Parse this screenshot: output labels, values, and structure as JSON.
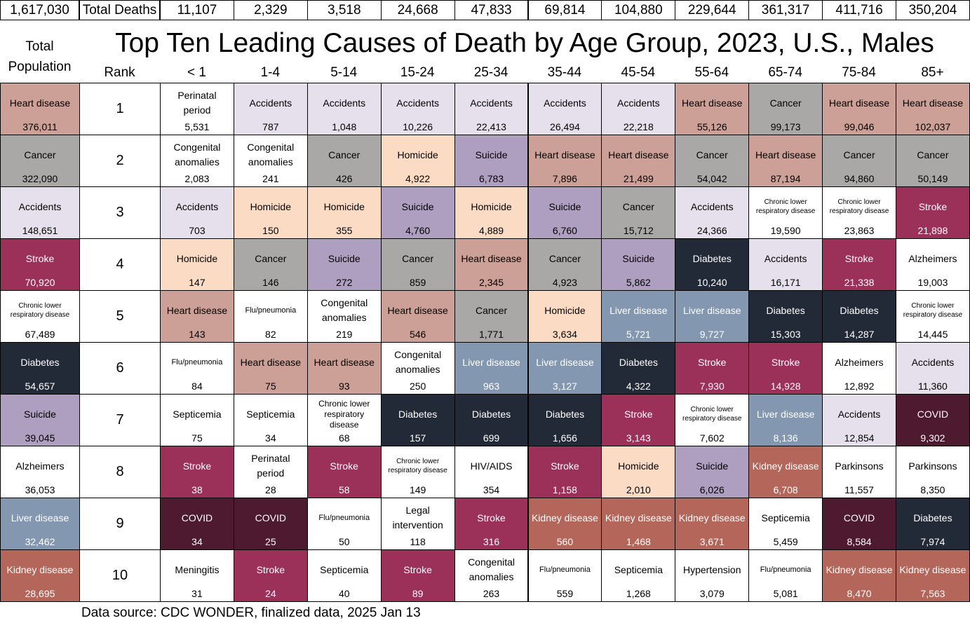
{
  "totals": {
    "overall": "1,617,030",
    "label": "Total Deaths",
    "by_age": [
      "11,107",
      "2,329",
      "3,518",
      "24,668",
      "47,833",
      "69,814",
      "104,880",
      "229,644",
      "361,317",
      "411,716",
      "350,204"
    ]
  },
  "title": "Top Ten Leading Causes of Death by Age Group, 2023, U.S., Males",
  "total_population_label_1": "Total",
  "total_population_label_2": "Population",
  "rank_label": "Rank",
  "age_groups": [
    "< 1",
    "1-4",
    "5-14",
    "15-24",
    "25-34",
    "35-44",
    "45-54",
    "55-64",
    "65-74",
    "75-84",
    "85+"
  ],
  "source": "Data source: CDC WONDER, finalized data, 2025 Jan 13",
  "colors": {
    "Heart disease": "#cca096",
    "Cancer": "#aaa7a7",
    "Accidents": "#e6e0ec",
    "Stroke": "#9b3159",
    "Chronic lower respiratory disease": "#ffffff",
    "Diabetes": "#232a37",
    "Suicide": "#ae9fc0",
    "Alzheimers": "#ffffff",
    "Liver disease": "#8497b0",
    "Kidney disease": "#b4665a",
    "Homicide": "#fcdbc4",
    "COVID": "#4d1a30",
    "Perinatal period": "#ffffff",
    "Congenital anomalies": "#ffffff",
    "Flu/pneumonia": "#ffffff",
    "Septicemia": "#ffffff",
    "HIV/AIDS": "#ffffff",
    "Legal intervention": "#ffffff",
    "Meningitis": "#ffffff",
    "Hypertension": "#ffffff",
    "Parkinsons": "#ffffff"
  },
  "chart_data": {
    "type": "table",
    "title": "Top Ten Leading Causes of Death by Age Group, 2023, U.S., Males",
    "columns": [
      "Total Population",
      "< 1",
      "1-4",
      "5-14",
      "15-24",
      "25-34",
      "35-44",
      "45-54",
      "55-64",
      "65-74",
      "75-84",
      "85+"
    ],
    "ranks": [
      "1",
      "2",
      "3",
      "4",
      "5",
      "6",
      "7",
      "8",
      "9",
      "10"
    ],
    "rows": [
      [
        {
          "cause": "Heart disease",
          "value": "376,011"
        },
        {
          "cause": "Perinatal period",
          "value": "5,531"
        },
        {
          "cause": "Accidents",
          "value": "787"
        },
        {
          "cause": "Accidents",
          "value": "1,048"
        },
        {
          "cause": "Accidents",
          "value": "10,226"
        },
        {
          "cause": "Accidents",
          "value": "22,413"
        },
        {
          "cause": "Accidents",
          "value": "26,494"
        },
        {
          "cause": "Accidents",
          "value": "22,218"
        },
        {
          "cause": "Heart disease",
          "value": "55,126"
        },
        {
          "cause": "Cancer",
          "value": "99,173"
        },
        {
          "cause": "Heart disease",
          "value": "99,046"
        },
        {
          "cause": "Heart disease",
          "value": "102,037"
        }
      ],
      [
        {
          "cause": "Cancer",
          "value": "322,090"
        },
        {
          "cause": "Congenital anomalies",
          "value": "2,083"
        },
        {
          "cause": "Congenital anomalies",
          "value": "241"
        },
        {
          "cause": "Cancer",
          "value": "426"
        },
        {
          "cause": "Homicide",
          "value": "4,922"
        },
        {
          "cause": "Suicide",
          "value": "6,783"
        },
        {
          "cause": "Heart disease",
          "value": "7,896"
        },
        {
          "cause": "Heart disease",
          "value": "21,499"
        },
        {
          "cause": "Cancer",
          "value": "54,042"
        },
        {
          "cause": "Heart disease",
          "value": "87,194"
        },
        {
          "cause": "Cancer",
          "value": "94,860"
        },
        {
          "cause": "Cancer",
          "value": "50,149"
        }
      ],
      [
        {
          "cause": "Accidents",
          "value": "148,651"
        },
        {
          "cause": "Accidents",
          "value": "703"
        },
        {
          "cause": "Homicide",
          "value": "150"
        },
        {
          "cause": "Homicide",
          "value": "355"
        },
        {
          "cause": "Suicide",
          "value": "4,760"
        },
        {
          "cause": "Homicide",
          "value": "4,889"
        },
        {
          "cause": "Suicide",
          "value": "6,760"
        },
        {
          "cause": "Cancer",
          "value": "15,712"
        },
        {
          "cause": "Accidents",
          "value": "24,366"
        },
        {
          "cause": "Chronic lower respiratory disease",
          "value": "19,590"
        },
        {
          "cause": "Chronic lower respiratory disease",
          "value": "23,863"
        },
        {
          "cause": "Stroke",
          "value": "21,898"
        }
      ],
      [
        {
          "cause": "Stroke",
          "value": "70,920"
        },
        {
          "cause": "Homicide",
          "value": "147"
        },
        {
          "cause": "Cancer",
          "value": "146"
        },
        {
          "cause": "Suicide",
          "value": "272"
        },
        {
          "cause": "Cancer",
          "value": "859"
        },
        {
          "cause": "Heart disease",
          "value": "2,345"
        },
        {
          "cause": "Cancer",
          "value": "4,923"
        },
        {
          "cause": "Suicide",
          "value": "5,862"
        },
        {
          "cause": "Diabetes",
          "value": "10,240"
        },
        {
          "cause": "Accidents",
          "value": "16,171"
        },
        {
          "cause": "Stroke",
          "value": "21,338"
        },
        {
          "cause": "Alzheimers",
          "value": "19,003"
        }
      ],
      [
        {
          "cause": "Chronic lower respiratory disease",
          "value": "67,489"
        },
        {
          "cause": "Heart disease",
          "value": "143"
        },
        {
          "cause": "Flu/pneumonia",
          "value": "82"
        },
        {
          "cause": "Congenital anomalies",
          "value": "219"
        },
        {
          "cause": "Heart disease",
          "value": "546"
        },
        {
          "cause": "Cancer",
          "value": "1,771"
        },
        {
          "cause": "Homicide",
          "value": "3,634"
        },
        {
          "cause": "Liver disease",
          "value": "5,721"
        },
        {
          "cause": "Liver disease",
          "value": "9,727"
        },
        {
          "cause": "Diabetes",
          "value": "15,303"
        },
        {
          "cause": "Diabetes",
          "value": "14,287"
        },
        {
          "cause": "Chronic lower respiratory disease",
          "value": "14,445"
        }
      ],
      [
        {
          "cause": "Diabetes",
          "value": "54,657"
        },
        {
          "cause": "Flu/pneumonia",
          "value": "84"
        },
        {
          "cause": "Heart disease",
          "value": "75"
        },
        {
          "cause": "Heart disease",
          "value": "93"
        },
        {
          "cause": "Congenital anomalies",
          "value": "250"
        },
        {
          "cause": "Liver disease",
          "value": "963"
        },
        {
          "cause": "Liver disease",
          "value": "3,127"
        },
        {
          "cause": "Diabetes",
          "value": "4,322"
        },
        {
          "cause": "Stroke",
          "value": "7,930"
        },
        {
          "cause": "Stroke",
          "value": "14,928"
        },
        {
          "cause": "Alzheimers",
          "value": "12,892"
        },
        {
          "cause": "Accidents",
          "value": "11,360"
        }
      ],
      [
        {
          "cause": "Suicide",
          "value": "39,045"
        },
        {
          "cause": "Septicemia",
          "value": "75"
        },
        {
          "cause": "Septicemia",
          "value": "34"
        },
        {
          "cause": "Chronic lower respiratory disease",
          "value": "68"
        },
        {
          "cause": "Diabetes",
          "value": "157"
        },
        {
          "cause": "Diabetes",
          "value": "699"
        },
        {
          "cause": "Diabetes",
          "value": "1,656"
        },
        {
          "cause": "Stroke",
          "value": "3,143"
        },
        {
          "cause": "Chronic lower respiratory disease",
          "value": "7,602"
        },
        {
          "cause": "Liver disease",
          "value": "8,136"
        },
        {
          "cause": "Accidents",
          "value": "12,854"
        },
        {
          "cause": "COVID",
          "value": "9,302"
        }
      ],
      [
        {
          "cause": "Alzheimers",
          "value": "36,053"
        },
        {
          "cause": "Stroke",
          "value": "38"
        },
        {
          "cause": "Perinatal period",
          "value": "28"
        },
        {
          "cause": "Stroke",
          "value": "58"
        },
        {
          "cause": "Chronic lower respiratory disease",
          "value": "149"
        },
        {
          "cause": "HIV/AIDS",
          "value": "354"
        },
        {
          "cause": "Stroke",
          "value": "1,158"
        },
        {
          "cause": "Homicide",
          "value": "2,010"
        },
        {
          "cause": "Suicide",
          "value": "6,026"
        },
        {
          "cause": "Kidney disease",
          "value": "6,708"
        },
        {
          "cause": "Parkinsons",
          "value": "11,557"
        },
        {
          "cause": "Parkinsons",
          "value": "8,350"
        }
      ],
      [
        {
          "cause": "Liver disease",
          "value": "32,462"
        },
        {
          "cause": "COVID",
          "value": "34"
        },
        {
          "cause": "COVID",
          "value": "25"
        },
        {
          "cause": "Flu/pneumonia",
          "value": "50"
        },
        {
          "cause": "Legal intervention",
          "value": "118"
        },
        {
          "cause": "Stroke",
          "value": "316"
        },
        {
          "cause": "Kidney disease",
          "value": "560"
        },
        {
          "cause": "Kidney disease",
          "value": "1,468"
        },
        {
          "cause": "Kidney disease",
          "value": "3,671"
        },
        {
          "cause": "Septicemia",
          "value": "5,459"
        },
        {
          "cause": "COVID",
          "value": "8,584"
        },
        {
          "cause": "Diabetes",
          "value": "7,974"
        }
      ],
      [
        {
          "cause": "Kidney disease",
          "value": "28,695"
        },
        {
          "cause": "Meningitis",
          "value": "31"
        },
        {
          "cause": "Stroke",
          "value": "24"
        },
        {
          "cause": "Septicemia",
          "value": "40"
        },
        {
          "cause": "Stroke",
          "value": "89"
        },
        {
          "cause": "Congenital anomalies",
          "value": "263"
        },
        {
          "cause": "Flu/pneumonia",
          "value": "559"
        },
        {
          "cause": "Septicemia",
          "value": "1,268"
        },
        {
          "cause": "Hypertension",
          "value": "3,079"
        },
        {
          "cause": "Flu/pneumonia",
          "value": "5,081"
        },
        {
          "cause": "Kidney disease",
          "value": "8,470"
        },
        {
          "cause": "Kidney disease",
          "value": "7,563"
        }
      ]
    ]
  }
}
